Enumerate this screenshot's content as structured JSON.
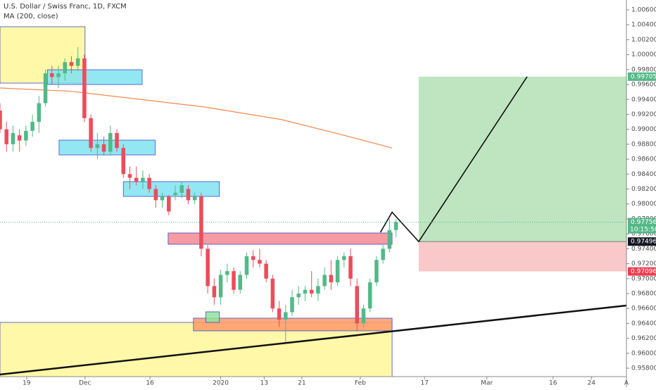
{
  "chart_data": {
    "type": "candlestick",
    "title": "U.S. Dollar / Swiss Franc, 1D, FXCM",
    "up_color": "#53b987",
    "down_color": "#eb4d5c",
    "x": [
      0,
      1,
      2,
      3,
      4,
      5,
      6,
      7,
      8,
      9,
      10,
      11,
      12,
      13,
      14,
      15,
      16,
      17,
      18,
      19,
      20,
      21,
      22,
      23,
      24,
      25,
      26,
      27,
      28,
      29,
      30,
      31,
      32,
      33,
      34,
      35,
      36,
      37,
      38,
      39,
      40,
      41,
      42,
      43,
      44,
      45,
      46,
      47,
      48,
      49,
      50,
      51,
      52,
      53,
      54,
      55,
      56,
      57,
      58,
      59,
      60,
      61
    ],
    "open": [
      0.9925,
      0.99,
      0.988,
      0.9892,
      0.9885,
      0.9898,
      0.991,
      0.9935,
      0.9975,
      0.997,
      0.9975,
      0.999,
      0.9985,
      0.9995,
      0.9915,
      0.9875,
      0.988,
      0.987,
      0.9895,
      0.9875,
      0.984,
      0.9835,
      0.983,
      0.9835,
      0.982,
      0.9805,
      0.981,
      0.9812,
      0.9815,
      0.982,
      0.9805,
      0.981,
      0.974,
      0.969,
      0.9675,
      0.9705,
      0.971,
      0.9685,
      0.9705,
      0.973,
      0.9725,
      0.972,
      0.97,
      0.966,
      0.9645,
      0.9655,
      0.9675,
      0.968,
      0.9685,
      0.968,
      0.969,
      0.9705,
      0.9695,
      0.9725,
      0.973,
      0.969,
      0.964,
      0.966,
      0.9695,
      0.9725,
      0.974,
      0.9765
    ],
    "high": [
      0.9935,
      0.991,
      0.9905,
      0.99,
      0.9905,
      0.992,
      0.9945,
      0.998,
      0.9985,
      0.9985,
      0.9995,
      0.9998,
      1.001,
      1.0,
      0.992,
      0.9895,
      0.989,
      0.9905,
      0.99,
      0.988,
      0.985,
      0.985,
      0.9845,
      0.984,
      0.9825,
      0.9815,
      0.9812,
      0.9825,
      0.983,
      0.9825,
      0.9815,
      0.9815,
      0.9745,
      0.97,
      0.9712,
      0.972,
      0.9715,
      0.971,
      0.9735,
      0.9738,
      0.974,
      0.9725,
      0.9705,
      0.967,
      0.9665,
      0.9685,
      0.969,
      0.969,
      0.971,
      0.97,
      0.9715,
      0.9725,
      0.973,
      0.9735,
      0.974,
      0.97,
      0.9665,
      0.97,
      0.973,
      0.9745,
      0.978,
      0.978
    ],
    "low": [
      0.9895,
      0.987,
      0.987,
      0.987,
      0.9878,
      0.989,
      0.9895,
      0.993,
      0.996,
      0.9955,
      0.9965,
      0.9975,
      0.9978,
      0.991,
      0.987,
      0.986,
      0.9865,
      0.9865,
      0.987,
      0.9835,
      0.982,
      0.9825,
      0.982,
      0.9815,
      0.9795,
      0.9795,
      0.9785,
      0.9805,
      0.9808,
      0.98,
      0.98,
      0.973,
      0.968,
      0.9665,
      0.9665,
      0.9695,
      0.968,
      0.968,
      0.97,
      0.9715,
      0.9715,
      0.9695,
      0.9655,
      0.9635,
      0.9615,
      0.965,
      0.9665,
      0.967,
      0.9675,
      0.967,
      0.9685,
      0.9685,
      0.969,
      0.9715,
      0.969,
      0.963,
      0.9635,
      0.9655,
      0.969,
      0.972,
      0.9735,
      0.9755
    ],
    "close": [
      0.99,
      0.988,
      0.9895,
      0.9885,
      0.9898,
      0.991,
      0.9935,
      0.9975,
      0.997,
      0.9975,
      0.999,
      0.9985,
      0.9995,
      0.9915,
      0.9875,
      0.988,
      0.987,
      0.9895,
      0.9875,
      0.984,
      0.9835,
      0.983,
      0.9835,
      0.982,
      0.9805,
      0.981,
      0.979,
      0.9815,
      0.9825,
      0.9805,
      0.981,
      0.974,
      0.969,
      0.9675,
      0.9705,
      0.971,
      0.9685,
      0.9705,
      0.973,
      0.9725,
      0.972,
      0.97,
      0.966,
      0.9645,
      0.9655,
      0.9675,
      0.968,
      0.9685,
      0.968,
      0.969,
      0.9705,
      0.9695,
      0.9725,
      0.973,
      0.97,
      0.964,
      0.966,
      0.9695,
      0.9725,
      0.974,
      0.9765,
      0.9776
    ],
    "ma": {
      "name": "MA (200, close)",
      "color": "#f7874a",
      "x": [
        0,
        10.8,
        21.7,
        31.4,
        43.4,
        52.1,
        60.4
      ],
      "values": [
        0.99553,
        0.9951,
        0.994,
        0.993,
        0.9913,
        0.9894,
        0.9875
      ]
    },
    "xlim": [
      0,
      96.5
    ],
    "ylim": [
      0.95687,
      1.00732
    ],
    "xticks": [
      {
        "value": 4.1,
        "label": "19"
      },
      {
        "value": 13.1,
        "label": "Dec"
      },
      {
        "value": 23.1,
        "label": "16"
      },
      {
        "value": 34,
        "label": "2020"
      },
      {
        "value": 40.7,
        "label": "13"
      },
      {
        "value": 46.5,
        "label": "21"
      },
      {
        "value": 55.5,
        "label": "Feb"
      },
      {
        "value": 65.4,
        "label": "17"
      },
      {
        "value": 75,
        "label": "Mar"
      },
      {
        "value": 85.2,
        "label": "16"
      },
      {
        "value": 91.1,
        "label": "24"
      },
      {
        "value": 96.5,
        "label": "A"
      }
    ],
    "yticks": [
      {
        "value": 0.958,
        "label": "0.95800"
      },
      {
        "value": 0.96,
        "label": "0.96000"
      },
      {
        "value": 0.962,
        "label": "0.96200"
      },
      {
        "value": 0.964,
        "label": "0.96400"
      },
      {
        "value": 0.966,
        "label": "0.96600"
      },
      {
        "value": 0.968,
        "label": "0.96800"
      },
      {
        "value": 0.97,
        "label": "0.97000"
      },
      {
        "value": 0.972,
        "label": "0.97200"
      },
      {
        "value": 0.974,
        "label": "0.97400"
      },
      {
        "value": 0.976,
        "label": "0.97600"
      },
      {
        "value": 0.978,
        "label": "0.97800"
      },
      {
        "value": 0.98,
        "label": "0.98000"
      },
      {
        "value": 0.982,
        "label": "0.98200"
      },
      {
        "value": 0.984,
        "label": "0.98400"
      },
      {
        "value": 0.986,
        "label": "0.98600"
      },
      {
        "value": 0.988,
        "label": "0.98800"
      },
      {
        "value": 0.99,
        "label": "0.99000"
      },
      {
        "value": 0.992,
        "label": "0.99200"
      },
      {
        "value": 0.994,
        "label": "0.99400"
      },
      {
        "value": 0.996,
        "label": "0.99600"
      },
      {
        "value": 0.998,
        "label": "0.99800"
      },
      {
        "value": 1.0,
        "label": "1.00000"
      },
      {
        "value": 1.002,
        "label": "1.00200"
      },
      {
        "value": 1.004,
        "label": "1.00400"
      },
      {
        "value": 1.006,
        "label": "1.00600"
      }
    ],
    "zones": [
      {
        "color": "#fff799",
        "x": [
          0,
          13.1
        ],
        "y": [
          0.99619,
          1.00374
        ]
      },
      {
        "color": "#fff799",
        "x": [
          0,
          60.4
        ],
        "y": [
          0.95687,
          0.96413
        ]
      },
      {
        "color": "#7fe3f0",
        "x": [
          7.3,
          21.9
        ],
        "y": [
          0.996,
          0.99798
        ]
      },
      {
        "color": "#7fe3f0",
        "x": [
          9.1,
          23.9
        ],
        "y": [
          0.98657,
          0.98855
        ]
      },
      {
        "color": "#7fe3f0",
        "x": [
          19,
          33.8
        ],
        "y": [
          0.98101,
          0.98299
        ]
      },
      {
        "color": "#f58a94",
        "x": [
          25.9,
          60.4
        ],
        "y": [
          0.9746,
          0.97611
        ]
      },
      {
        "color": "#ff9a6a",
        "x": [
          29.8,
          60.4
        ],
        "y": [
          0.963,
          0.9647
        ]
      },
      {
        "color": "#8fe39a",
        "x": [
          31.7,
          33.8
        ],
        "y": [
          0.96413,
          0.96555
        ]
      }
    ],
    "position": {
      "x": [
        64.5,
        96.5
      ],
      "entry": 0.97496,
      "target": 0.99705,
      "stop": 0.97096
    },
    "projection": {
      "x": [
        58.6,
        60.4,
        64.5,
        81.2
      ],
      "values": [
        0.9762,
        0.97889,
        0.97496,
        0.99705
      ]
    },
    "trendline": {
      "x": [
        0,
        96.5
      ],
      "values": [
        0.95715,
        0.9664
      ]
    },
    "price_labels": [
      {
        "value": 0.99705,
        "color": "#53b987"
      },
      {
        "value": 0.97756,
        "color": "#53b987",
        "dashed": true
      },
      {
        "value": 0.97496,
        "color": "#131722"
      },
      {
        "value": 0.97096,
        "color": "#ef3d4f"
      }
    ],
    "countdown": "10:15:50"
  }
}
